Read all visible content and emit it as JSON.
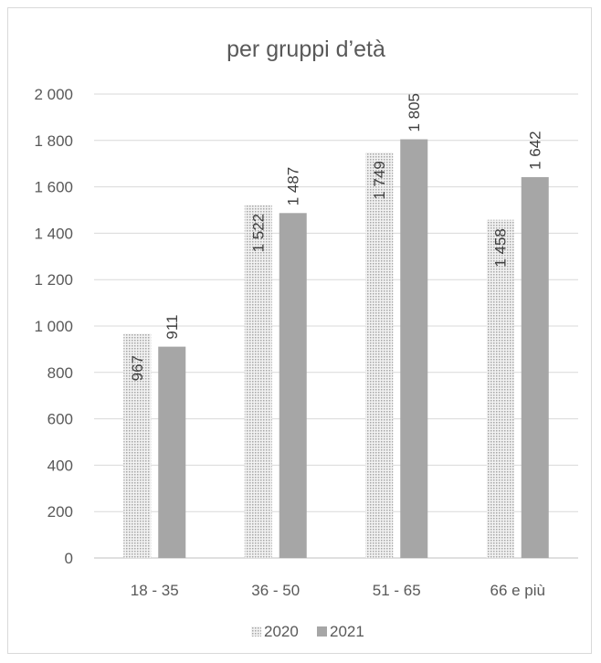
{
  "chart_data": {
    "type": "bar",
    "title": "per gruppi d’età",
    "categories": [
      "18 - 35",
      "36 - 50",
      "51 - 65",
      "66 e più"
    ],
    "series": [
      {
        "name": "2020",
        "values": [
          967,
          1522,
          1749,
          1458
        ],
        "value_labels": [
          "967",
          "1 522",
          "1 749",
          "1 458"
        ],
        "color": "#d9d9d9",
        "pattern": "dotted"
      },
      {
        "name": "2021",
        "values": [
          911,
          1487,
          1805,
          1642
        ],
        "value_labels": [
          "911",
          "1 487",
          "1 805",
          "1 642"
        ],
        "color": "#a6a6a6",
        "pattern": "solid"
      }
    ],
    "ylim": [
      0,
      2000
    ],
    "yticks": [
      0,
      200,
      400,
      600,
      800,
      1000,
      1200,
      1400,
      1600,
      1800,
      2000
    ],
    "ytick_labels": [
      "0",
      "200",
      "400",
      "600",
      "800",
      "1 000",
      "1 200",
      "1 400",
      "1 600",
      "1 800",
      "2 000"
    ],
    "grid": true,
    "legend_position": "bottom"
  }
}
